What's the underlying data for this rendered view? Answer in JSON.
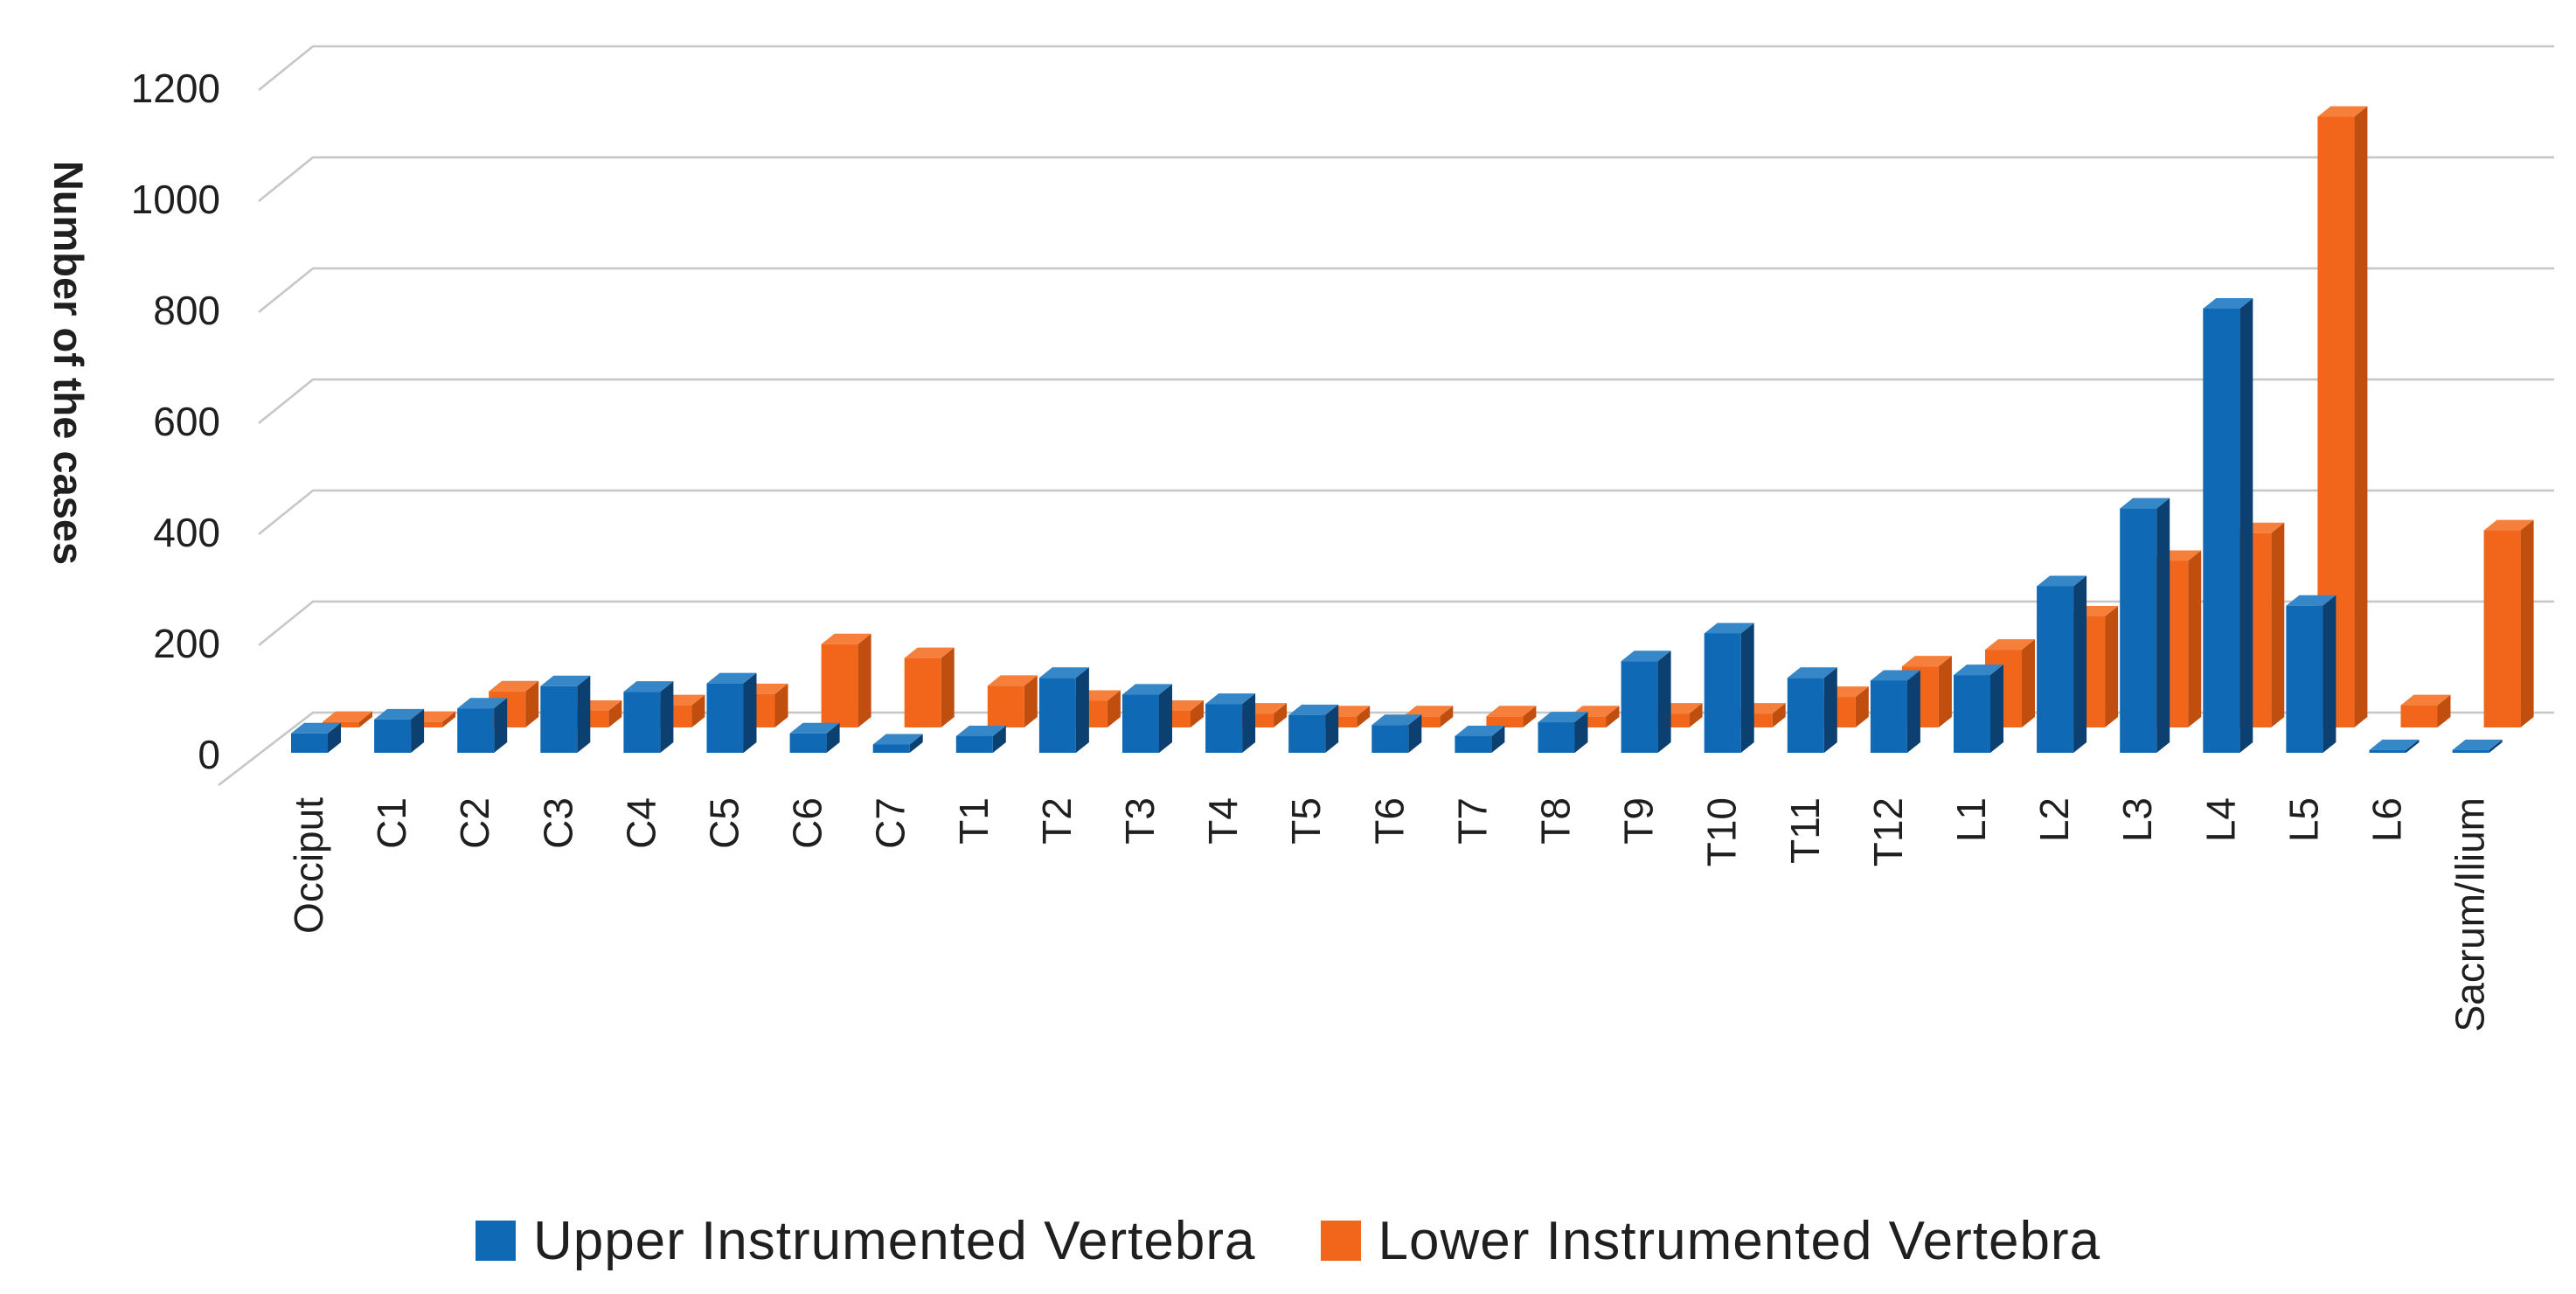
{
  "figure": {
    "background": "#ffffff",
    "text_color": "#1f1f1f",
    "gridline_color": "#c6c6c6"
  },
  "chart_data": {
    "type": "bar",
    "projection": "3d-clustered-column",
    "title": "",
    "xlabel": "",
    "ylabel": "Number of the cases",
    "ylim": [
      0,
      1200
    ],
    "yticks": [
      0,
      200,
      400,
      600,
      800,
      1000,
      1200
    ],
    "grid": true,
    "legend_position": "bottom",
    "categories": [
      "Occiput",
      "C1",
      "C2",
      "C3",
      "C4",
      "C5",
      "C6",
      "C7",
      "T1",
      "T2",
      "T3",
      "T4",
      "T5",
      "T6",
      "T7",
      "T8",
      "T9",
      "T10",
      "T11",
      "T12",
      "L1",
      "L2",
      "L3",
      "L4",
      "L5",
      "L6",
      "Sacrum/Ilium"
    ],
    "series": [
      {
        "name": "Upper Instrumented Vertebra",
        "color": "#0f69b4",
        "color_top": "#3587c8",
        "color_side": "#0b4070",
        "values": [
          35,
          60,
          80,
          120,
          110,
          125,
          35,
          15,
          30,
          135,
          105,
          88,
          68,
          50,
          30,
          55,
          165,
          215,
          135,
          130,
          140,
          300,
          440,
          800,
          265,
          5,
          5
        ]
      },
      {
        "name": "Lower Instrumented Vertebra",
        "color": "#f2661c",
        "color_top": "#f57f3b",
        "color_side": "#c04e0f",
        "values": [
          10,
          10,
          65,
          30,
          40,
          60,
          150,
          125,
          75,
          48,
          30,
          25,
          20,
          20,
          20,
          20,
          25,
          25,
          55,
          110,
          140,
          200,
          300,
          350,
          1100,
          40,
          355
        ]
      }
    ]
  }
}
